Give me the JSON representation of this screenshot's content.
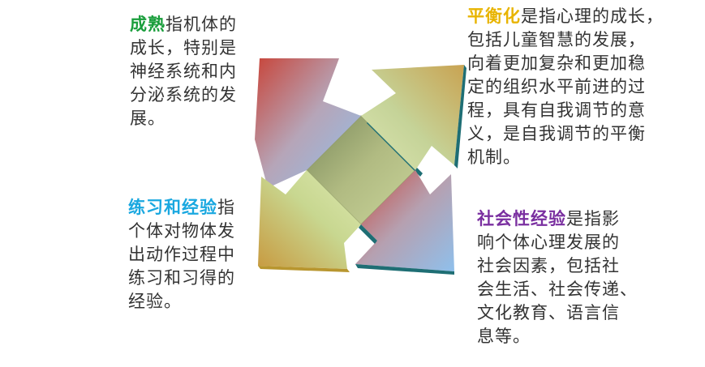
{
  "colors": {
    "maturation": "#1a9e3c",
    "equilibration": "#e8b400",
    "experience": "#1aa8e0",
    "social": "#7a2fa0",
    "body_text": "#333333"
  },
  "blocks": {
    "maturation": {
      "keyword": "成熟",
      "lines": [
        "指机体的",
        "成长，特别是",
        "神经系统和内",
        "分泌系统的发",
        "展。"
      ]
    },
    "equilibration": {
      "keyword": "平衡化",
      "lines": [
        "是指心理的成长，",
        "包括儿童智慧的发展，",
        "向着更加复杂和更加稳",
        "定的组织水平前进的过",
        "程，具有自我调节的意",
        "义，是自我调节的平衡",
        "机制。"
      ]
    },
    "experience": {
      "keyword": "练习和经验",
      "lines": [
        "指",
        "个体对物体发",
        "出动作过程中",
        "练习和习得的",
        "经验。"
      ]
    },
    "social": {
      "keyword": "社会性经验",
      "lines": [
        "是指影",
        "响个体心理发展的",
        "社会因素，包括社",
        "会生活、社会传递、",
        "文化教育、语言信",
        "息等。"
      ]
    }
  }
}
